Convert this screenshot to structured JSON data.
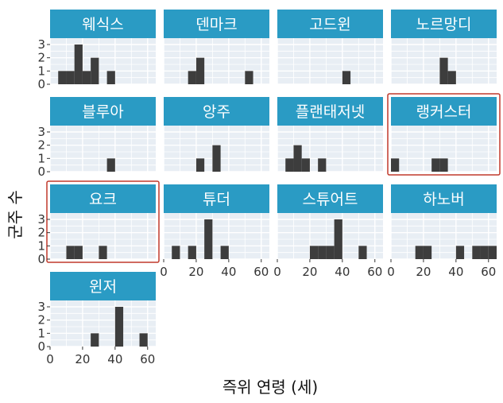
{
  "chart_data": {
    "type": "bar",
    "xlabel": "즉위 연령 (세)",
    "ylabel": "군주 수",
    "xlim": [
      0,
      65
    ],
    "ylim": [
      0,
      3
    ],
    "x_ticks": [
      0,
      20,
      40,
      60
    ],
    "y_ticks": [
      0,
      1,
      2,
      3
    ],
    "bin_width": 5,
    "grid": true,
    "colors": {
      "panel_background": "#e8eef4",
      "strip_background": "#2a9bc4",
      "strip_text": "#ffffff",
      "bar_fill": "#3d3d3d",
      "highlight_border": "#c0392b"
    },
    "panels": [
      {
        "name": "웨식스",
        "highlighted": false,
        "bins": [
          {
            "x": 7.5,
            "count": 1
          },
          {
            "x": 12.5,
            "count": 1
          },
          {
            "x": 17.5,
            "count": 3
          },
          {
            "x": 22.5,
            "count": 1
          },
          {
            "x": 27.5,
            "count": 2
          },
          {
            "x": 37.5,
            "count": 1
          }
        ]
      },
      {
        "name": "덴마크",
        "highlighted": false,
        "bins": [
          {
            "x": 17.5,
            "count": 1
          },
          {
            "x": 22.5,
            "count": 2
          },
          {
            "x": 52.5,
            "count": 1
          }
        ]
      },
      {
        "name": "고드윈",
        "highlighted": false,
        "bins": [
          {
            "x": 42.5,
            "count": 1
          }
        ]
      },
      {
        "name": "노르망디",
        "highlighted": false,
        "bins": [
          {
            "x": 32.5,
            "count": 2
          },
          {
            "x": 37.5,
            "count": 1
          }
        ]
      },
      {
        "name": "블루아",
        "highlighted": false,
        "bins": [
          {
            "x": 37.5,
            "count": 1
          }
        ]
      },
      {
        "name": "앙주",
        "highlighted": false,
        "bins": [
          {
            "x": 22.5,
            "count": 1
          },
          {
            "x": 32.5,
            "count": 2
          }
        ]
      },
      {
        "name": "플랜태저넷",
        "highlighted": false,
        "bins": [
          {
            "x": 7.5,
            "count": 1
          },
          {
            "x": 12.5,
            "count": 2
          },
          {
            "x": 17.5,
            "count": 1
          },
          {
            "x": 27.5,
            "count": 1
          }
        ]
      },
      {
        "name": "랭커스터",
        "highlighted": true,
        "bins": [
          {
            "x": 2.5,
            "count": 1
          },
          {
            "x": 27.5,
            "count": 1
          },
          {
            "x": 32.5,
            "count": 1
          }
        ]
      },
      {
        "name": "요크",
        "highlighted": true,
        "bins": [
          {
            "x": 12.5,
            "count": 1
          },
          {
            "x": 17.5,
            "count": 1
          },
          {
            "x": 32.5,
            "count": 1
          }
        ]
      },
      {
        "name": "튜더",
        "highlighted": false,
        "bins": [
          {
            "x": 7.5,
            "count": 1
          },
          {
            "x": 17.5,
            "count": 1
          },
          {
            "x": 27.5,
            "count": 3
          },
          {
            "x": 37.5,
            "count": 1
          }
        ]
      },
      {
        "name": "스튜어트",
        "highlighted": false,
        "bins": [
          {
            "x": 22.5,
            "count": 1
          },
          {
            "x": 27.5,
            "count": 1
          },
          {
            "x": 32.5,
            "count": 1
          },
          {
            "x": 37.5,
            "count": 3
          },
          {
            "x": 52.5,
            "count": 1
          }
        ]
      },
      {
        "name": "하노버",
        "highlighted": false,
        "bins": [
          {
            "x": 17.5,
            "count": 1
          },
          {
            "x": 22.5,
            "count": 1
          },
          {
            "x": 42.5,
            "count": 1
          },
          {
            "x": 52.5,
            "count": 1
          },
          {
            "x": 57.5,
            "count": 1
          },
          {
            "x": 62.5,
            "count": 1
          }
        ]
      },
      {
        "name": "윈저",
        "highlighted": false,
        "bins": [
          {
            "x": 27.5,
            "count": 1
          },
          {
            "x": 42.5,
            "count": 3
          },
          {
            "x": 57.5,
            "count": 1
          }
        ]
      }
    ]
  }
}
